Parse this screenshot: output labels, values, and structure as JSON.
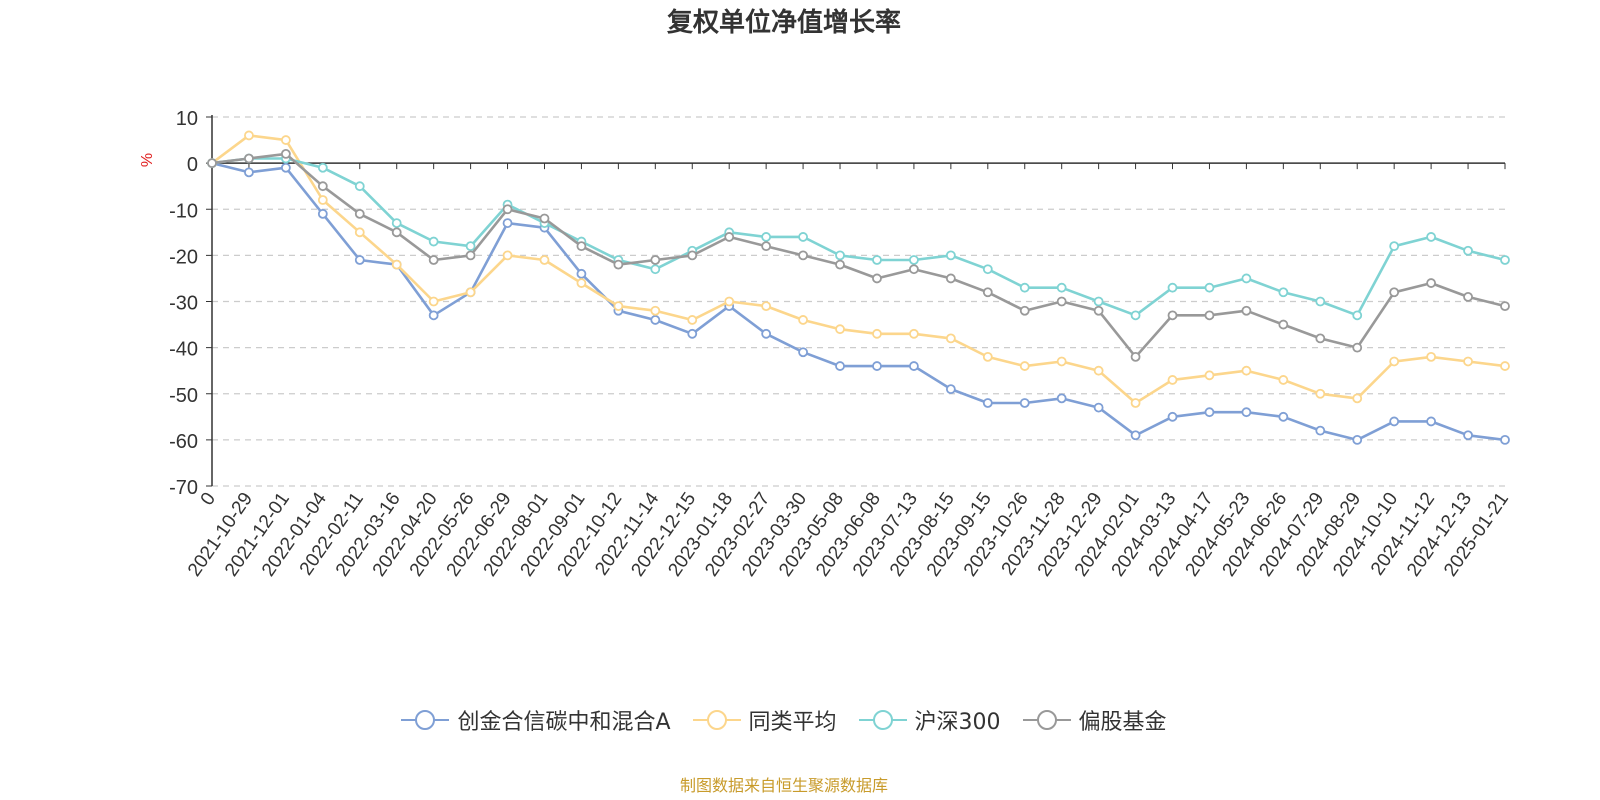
{
  "chart_data": {
    "type": "line",
    "title": "复权单位净值增长率",
    "xlabel": "",
    "ylabel": "%",
    "ylim": [
      -70,
      10
    ],
    "yticks": [
      10,
      0,
      -10,
      -20,
      -30,
      -40,
      -50,
      -60,
      -70
    ],
    "grid": true,
    "legend_position": "bottom",
    "categories": [
      "0",
      "2021-10-29",
      "2021-12-01",
      "2022-01-04",
      "2022-02-11",
      "2022-03-16",
      "2022-04-20",
      "2022-05-26",
      "2022-06-29",
      "2022-08-01",
      "2022-09-01",
      "2022-10-12",
      "2022-11-14",
      "2022-12-15",
      "2023-01-18",
      "2023-02-27",
      "2023-03-30",
      "2023-05-08",
      "2023-06-08",
      "2023-07-13",
      "2023-08-15",
      "2023-09-15",
      "2023-10-26",
      "2023-11-28",
      "2023-12-29",
      "2024-02-01",
      "2024-03-13",
      "2024-04-17",
      "2024-05-23",
      "2024-06-26",
      "2024-07-29",
      "2024-08-29",
      "2024-10-10",
      "2024-11-12",
      "2024-12-13",
      "2025-01-21"
    ],
    "series": [
      {
        "name": "创金合信碳中和混合A",
        "color": "#7f9fd5",
        "values": [
          0,
          -2,
          -1,
          -11,
          -21,
          -22,
          -33,
          -28,
          -13,
          -14,
          -24,
          -32,
          -34,
          -37,
          -31,
          -37,
          -41,
          -44,
          -44,
          -44,
          -49,
          -52,
          -52,
          -51,
          -53,
          -59,
          -55,
          -54,
          -54,
          -55,
          -58,
          -60,
          -56,
          -56,
          -59,
          -60
        ]
      },
      {
        "name": "同类平均",
        "color": "#fcd68c",
        "values": [
          0,
          6,
          5,
          -8,
          -15,
          -22,
          -30,
          -28,
          -20,
          -21,
          -26,
          -31,
          -32,
          -34,
          -30,
          -31,
          -34,
          -36,
          -37,
          -37,
          -38,
          -42,
          -44,
          -43,
          -45,
          -52,
          -47,
          -46,
          -45,
          -47,
          -50,
          -51,
          -43,
          -42,
          -43,
          -44
        ]
      },
      {
        "name": "沪深300",
        "color": "#7fd3d3",
        "values": [
          0,
          1,
          1,
          -1,
          -5,
          -13,
          -17,
          -18,
          -9,
          -13,
          -17,
          -21,
          -23,
          -19,
          -15,
          -16,
          -16,
          -20,
          -21,
          -21,
          -20,
          -23,
          -27,
          -27,
          -30,
          -33,
          -27,
          -27,
          -25,
          -28,
          -30,
          -33,
          -18,
          -16,
          -19,
          -21
        ]
      },
      {
        "name": "偏股基金",
        "color": "#999999",
        "values": [
          0,
          1,
          2,
          -5,
          -11,
          -15,
          -21,
          -20,
          -10,
          -12,
          -18,
          -22,
          -21,
          -20,
          -16,
          -18,
          -20,
          -22,
          -25,
          -23,
          -25,
          -28,
          -32,
          -30,
          -32,
          -42,
          -33,
          -33,
          -32,
          -35,
          -38,
          -40,
          -28,
          -26,
          -29,
          -31
        ]
      }
    ]
  },
  "source_note": "制图数据来自恒生聚源数据库"
}
